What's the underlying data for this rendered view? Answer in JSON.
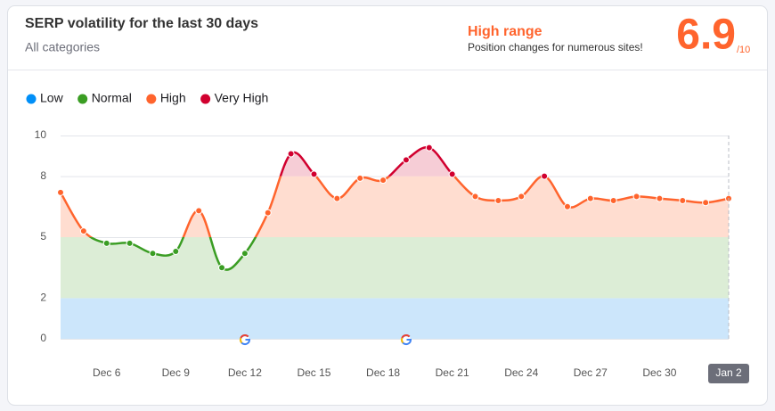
{
  "chart_data": {
    "type": "area-line",
    "title": "SERP volatility for the last 30 days",
    "subtitle": "All categories",
    "range_label": "High range",
    "range_note": "Position changes for numerous sites!",
    "score": 6.9,
    "score_suffix": "/10",
    "categories": [
      null,
      null,
      "Dec 6",
      null,
      null,
      "Dec 9",
      null,
      null,
      "Dec 12",
      null,
      null,
      "Dec 15",
      null,
      null,
      "Dec 18",
      null,
      null,
      "Dec 21",
      null,
      null,
      "Dec 24",
      null,
      null,
      "Dec 27",
      null,
      null,
      "Dec 30",
      null,
      null,
      "Jan 2"
    ],
    "values": [
      7.2,
      5.3,
      4.7,
      4.7,
      4.2,
      4.3,
      6.3,
      3.5,
      4.2,
      6.2,
      9.1,
      8.1,
      6.9,
      7.9,
      7.8,
      8.8,
      9.4,
      8.1,
      7.0,
      6.8,
      7.0,
      8.0,
      6.5,
      6.9,
      6.8,
      7.0,
      6.9,
      6.8,
      6.7,
      6.9
    ],
    "levels": [
      {
        "name": "Low",
        "color": "#008ff8",
        "fill": "#cce6fb"
      },
      {
        "name": "Normal",
        "color": "#3a9d23",
        "fill": "#dcedd6"
      },
      {
        "name": "High",
        "color": "#ff642d",
        "fill": "#ffddd0"
      },
      {
        "name": "Very High",
        "color": "#d1002f",
        "fill": "#f6cdd6"
      }
    ],
    "ylim": [
      0,
      10
    ],
    "yticks": [
      0,
      2,
      5,
      8,
      10
    ],
    "grid": true
  }
}
